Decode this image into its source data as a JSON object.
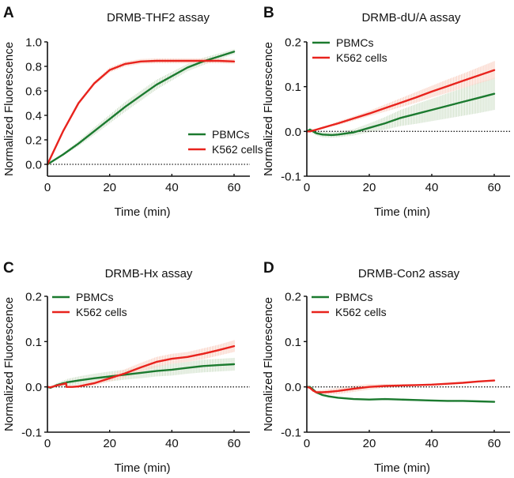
{
  "figure": {
    "colors": {
      "pbmc": "#1b7a2f",
      "k562": "#e8231d",
      "pbmc_band": "#c9dcc2",
      "k562_band": "#f9c8b8",
      "axis": "#111111"
    }
  },
  "chart_data": [
    {
      "type": "line",
      "panel_letter": "A",
      "title": "DRMB-THF2 assay",
      "xlabel": "Time (min)",
      "ylabel": "Normalized Fluorescence",
      "xlim": [
        0,
        65
      ],
      "ylim": [
        -0.1,
        1.0
      ],
      "xticks": [
        0,
        20,
        40,
        60
      ],
      "xtick_labels": [
        "0",
        "20",
        "40",
        "60"
      ],
      "yticks": [
        0.0,
        0.2,
        0.4,
        0.6,
        0.8,
        1.0
      ],
      "ytick_labels": [
        "0.0",
        "0.2",
        "0.4",
        "0.6",
        "0.8",
        "1.0"
      ],
      "reference_line": 0,
      "legend": {
        "position": "lower-right",
        "entries": [
          "PBMCs",
          "K562 cells"
        ]
      },
      "x": [
        0,
        5,
        10,
        15,
        20,
        25,
        30,
        35,
        40,
        45,
        50,
        55,
        60
      ],
      "series": [
        {
          "name": "PBMCs",
          "color_key": "pbmc",
          "band_key": "pbmc_band",
          "values": [
            0.0,
            0.08,
            0.17,
            0.27,
            0.37,
            0.47,
            0.56,
            0.65,
            0.72,
            0.79,
            0.84,
            0.88,
            0.92
          ],
          "error": [
            0.0,
            0.01,
            0.02,
            0.03,
            0.035,
            0.04,
            0.04,
            0.04,
            0.035,
            0.03,
            0.03,
            0.025,
            0.02
          ]
        },
        {
          "name": "K562 cells",
          "color_key": "k562",
          "band_key": "k562_band",
          "values": [
            0.0,
            0.27,
            0.5,
            0.66,
            0.77,
            0.82,
            0.84,
            0.845,
            0.845,
            0.845,
            0.845,
            0.845,
            0.84
          ],
          "error": [
            0.0,
            0.005,
            0.01,
            0.015,
            0.02,
            0.02,
            0.02,
            0.02,
            0.02,
            0.02,
            0.02,
            0.02,
            0.02
          ]
        }
      ]
    },
    {
      "type": "line",
      "panel_letter": "B",
      "title": "DRMB-dU/A assay",
      "xlabel": "Time (min)",
      "ylabel": "Normalized Fluorescence",
      "xlim": [
        0,
        65
      ],
      "ylim": [
        -0.1,
        0.2
      ],
      "xticks": [
        0,
        20,
        40,
        60
      ],
      "xtick_labels": [
        "0",
        "20",
        "40",
        "60"
      ],
      "yticks": [
        -0.1,
        0.0,
        0.1,
        0.2
      ],
      "ytick_labels": [
        "-0.1",
        "0.0",
        "0.1",
        "0.2"
      ],
      "reference_line": 0,
      "legend": {
        "position": "top-left",
        "entries": [
          "PBMCs",
          "K562 cells"
        ]
      },
      "x": [
        0,
        1,
        3,
        5,
        8,
        10,
        15,
        20,
        25,
        30,
        35,
        40,
        45,
        50,
        55,
        60
      ],
      "series": [
        {
          "name": "PBMCs",
          "color_key": "pbmc",
          "band_key": "pbmc_band",
          "values": [
            0.0,
            0.004,
            -0.004,
            -0.007,
            -0.008,
            -0.007,
            -0.002,
            0.008,
            0.018,
            0.03,
            0.039,
            0.048,
            0.057,
            0.066,
            0.075,
            0.084
          ],
          "error": [
            0.0,
            0.004,
            0.005,
            0.006,
            0.006,
            0.006,
            0.007,
            0.01,
            0.014,
            0.018,
            0.022,
            0.025,
            0.028,
            0.031,
            0.034,
            0.036
          ]
        },
        {
          "name": "K562 cells",
          "color_key": "k562",
          "band_key": "k562_band",
          "values": [
            0.0,
            0.0,
            0.004,
            0.008,
            0.014,
            0.018,
            0.029,
            0.04,
            0.052,
            0.064,
            0.076,
            0.089,
            0.101,
            0.113,
            0.125,
            0.137
          ],
          "error": [
            0.0,
            0.001,
            0.002,
            0.002,
            0.003,
            0.004,
            0.005,
            0.006,
            0.008,
            0.01,
            0.012,
            0.013,
            0.015,
            0.016,
            0.018,
            0.02
          ]
        }
      ]
    },
    {
      "type": "line",
      "panel_letter": "C",
      "title": "DRMB-Hx assay",
      "xlabel": "Time (min)",
      "ylabel": "Normalized Fluorescence",
      "xlim": [
        0,
        65
      ],
      "ylim": [
        -0.1,
        0.2
      ],
      "xticks": [
        0,
        20,
        40,
        60
      ],
      "xtick_labels": [
        "0",
        "20",
        "40",
        "60"
      ],
      "yticks": [
        -0.1,
        0.0,
        0.1,
        0.2
      ],
      "ytick_labels": [
        "-0.1",
        "0.0",
        "0.1",
        "0.2"
      ],
      "reference_line": 0,
      "legend": {
        "position": "top-left",
        "entries": [
          "PBMCs",
          "K562 cells"
        ]
      },
      "x": [
        0,
        1,
        3,
        5,
        6,
        6.1,
        8,
        10,
        15,
        20,
        25,
        30,
        35,
        40,
        45,
        50,
        55,
        60
      ],
      "series": [
        {
          "name": "PBMCs",
          "color_key": "pbmc",
          "band_key": "pbmc_band",
          "values": [
            0.0,
            -0.002,
            0.004,
            0.008,
            0.009,
            0.01,
            0.012,
            0.014,
            0.019,
            0.023,
            0.027,
            0.031,
            0.035,
            0.038,
            0.042,
            0.046,
            0.048,
            0.05
          ],
          "error": [
            0.0,
            0.002,
            0.004,
            0.006,
            0.007,
            0.007,
            0.008,
            0.009,
            0.01,
            0.011,
            0.011,
            0.012,
            0.012,
            0.013,
            0.013,
            0.014,
            0.014,
            0.014
          ]
        },
        {
          "name": "K562 cells",
          "color_key": "k562",
          "band_key": "k562_band",
          "values": [
            0.0,
            -0.001,
            0.003,
            0.006,
            0.008,
            0.0,
            0.0,
            0.001,
            0.008,
            0.019,
            0.03,
            0.043,
            0.055,
            0.062,
            0.066,
            0.073,
            0.081,
            0.09
          ],
          "error": [
            0.0,
            0.001,
            0.002,
            0.002,
            0.002,
            0.002,
            0.002,
            0.003,
            0.005,
            0.007,
            0.009,
            0.01,
            0.011,
            0.011,
            0.011,
            0.012,
            0.012,
            0.013
          ]
        }
      ]
    },
    {
      "type": "line",
      "panel_letter": "D",
      "title": "DRMB-Con2 assay",
      "xlabel": "Time (min)",
      "ylabel": "Normalized Fluorescence",
      "xlim": [
        0,
        65
      ],
      "ylim": [
        -0.1,
        0.2
      ],
      "xticks": [
        0,
        20,
        40,
        60
      ],
      "xtick_labels": [
        "0",
        "20",
        "40",
        "60"
      ],
      "yticks": [
        -0.1,
        0.0,
        0.1,
        0.2
      ],
      "ytick_labels": [
        "-0.1",
        "0.0",
        "0.1",
        "0.2"
      ],
      "reference_line": 0,
      "legend": {
        "position": "top-left",
        "entries": [
          "PBMCs",
          "K562 cells"
        ]
      },
      "x": [
        0,
        1,
        2,
        3,
        5,
        7,
        10,
        15,
        20,
        25,
        30,
        35,
        40,
        45,
        50,
        55,
        60
      ],
      "series": [
        {
          "name": "PBMCs",
          "color_key": "pbmc",
          "band_key": "pbmc_band",
          "values": [
            0.0,
            0.0,
            -0.006,
            -0.012,
            -0.018,
            -0.021,
            -0.024,
            -0.027,
            -0.028,
            -0.027,
            -0.028,
            -0.029,
            -0.03,
            -0.031,
            -0.031,
            -0.032,
            -0.033
          ],
          "error": [
            0.0,
            0.001,
            0.002,
            0.002,
            0.002,
            0.002,
            0.002,
            0.002,
            0.002,
            0.002,
            0.002,
            0.002,
            0.002,
            0.002,
            0.002,
            0.002,
            0.002
          ]
        },
        {
          "name": "K562 cells",
          "color_key": "k562",
          "band_key": "k562_band",
          "values": [
            0.0,
            -0.002,
            -0.008,
            -0.012,
            -0.012,
            -0.011,
            -0.009,
            -0.004,
            0.0,
            0.002,
            0.003,
            0.004,
            0.005,
            0.007,
            0.009,
            0.012,
            0.014
          ],
          "error": [
            0.0,
            0.001,
            0.003,
            0.004,
            0.005,
            0.006,
            0.007,
            0.007,
            0.006,
            0.004,
            0.003,
            0.002,
            0.002,
            0.002,
            0.002,
            0.002,
            0.002
          ]
        }
      ]
    }
  ]
}
